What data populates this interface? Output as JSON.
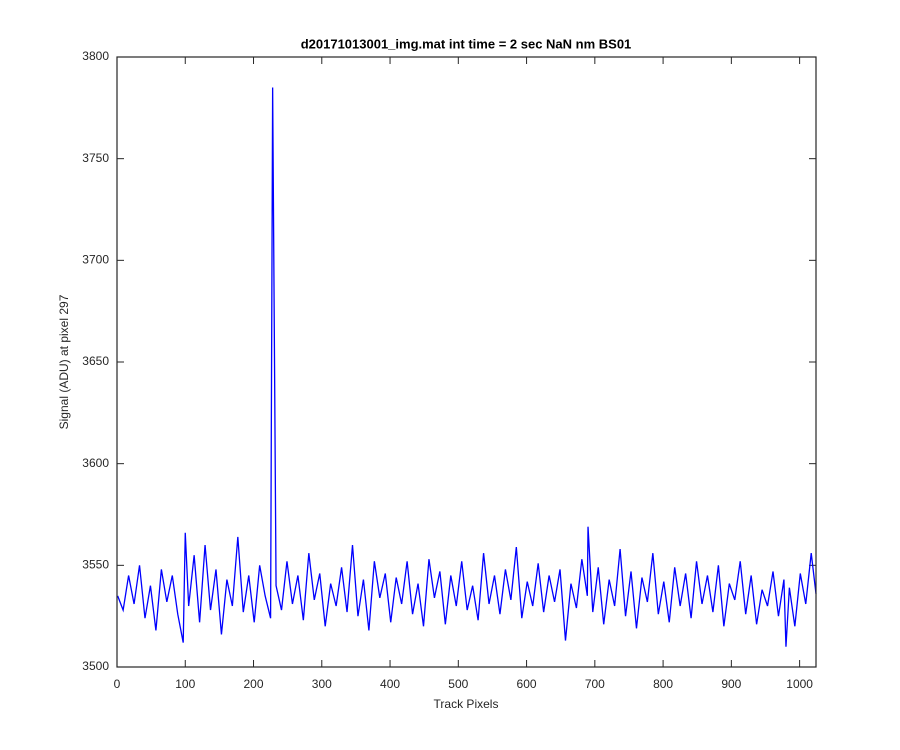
{
  "chart_data": {
    "type": "line",
    "title": "d20171013001_img.mat int time = 2 sec  NaN nm BS01",
    "xlabel": "Track Pixels",
    "ylabel": "Signal (ADU) at pixel 297",
    "xlim": [
      0,
      1024
    ],
    "xticks": [
      0,
      100,
      200,
      300,
      400,
      500,
      600,
      700,
      800,
      900,
      1000
    ],
    "ylim": [
      3500,
      3800
    ],
    "yticks": [
      3500,
      3550,
      3600,
      3650,
      3700,
      3750,
      3800
    ],
    "grid": false,
    "x": [
      1,
      9,
      17,
      25,
      33,
      41,
      49,
      57,
      65,
      73,
      81,
      89,
      97,
      100,
      105,
      113,
      121,
      129,
      137,
      145,
      153,
      161,
      169,
      177,
      185,
      193,
      201,
      209,
      217,
      225,
      228,
      233,
      241,
      249,
      257,
      265,
      273,
      281,
      289,
      297,
      305,
      313,
      321,
      329,
      337,
      345,
      353,
      361,
      369,
      377,
      385,
      393,
      401,
      409,
      417,
      425,
      433,
      441,
      449,
      457,
      465,
      473,
      481,
      489,
      497,
      505,
      513,
      521,
      529,
      537,
      545,
      553,
      561,
      569,
      577,
      585,
      593,
      601,
      609,
      617,
      625,
      633,
      641,
      649,
      657,
      665,
      673,
      681,
      689,
      690,
      697,
      705,
      713,
      721,
      729,
      737,
      745,
      753,
      761,
      769,
      777,
      785,
      793,
      801,
      809,
      817,
      825,
      833,
      841,
      849,
      857,
      865,
      873,
      881,
      889,
      897,
      905,
      913,
      921,
      929,
      937,
      945,
      953,
      961,
      969,
      977,
      980,
      985,
      993,
      1001,
      1009,
      1017,
      1024
    ],
    "series": [
      {
        "name": "signal",
        "color": "#0000ff",
        "values": [
          3535,
          3528,
          3545,
          3531,
          3550,
          3524,
          3540,
          3518,
          3548,
          3532,
          3545,
          3526,
          3512,
          3566,
          3530,
          3555,
          3522,
          3560,
          3528,
          3548,
          3516,
          3543,
          3530,
          3564,
          3527,
          3545,
          3522,
          3550,
          3535,
          3524,
          3785,
          3540,
          3528,
          3552,
          3531,
          3545,
          3523,
          3556,
          3533,
          3546,
          3520,
          3541,
          3530,
          3549,
          3527,
          3560,
          3525,
          3543,
          3518,
          3552,
          3534,
          3546,
          3522,
          3544,
          3531,
          3552,
          3526,
          3541,
          3520,
          3553,
          3534,
          3547,
          3521,
          3545,
          3530,
          3552,
          3528,
          3540,
          3523,
          3556,
          3531,
          3545,
          3526,
          3548,
          3533,
          3559,
          3524,
          3542,
          3530,
          3551,
          3527,
          3545,
          3532,
          3548,
          3513,
          3541,
          3529,
          3553,
          3535,
          3569,
          3527,
          3549,
          3521,
          3543,
          3530,
          3558,
          3525,
          3547,
          3519,
          3544,
          3532,
          3556,
          3526,
          3542,
          3522,
          3549,
          3530,
          3546,
          3524,
          3552,
          3531,
          3545,
          3527,
          3550,
          3520,
          3541,
          3533,
          3552,
          3526,
          3545,
          3521,
          3538,
          3530,
          3547,
          3525,
          3543,
          3510,
          3539,
          3520,
          3546,
          3531,
          3556,
          3536
        ]
      }
    ]
  }
}
